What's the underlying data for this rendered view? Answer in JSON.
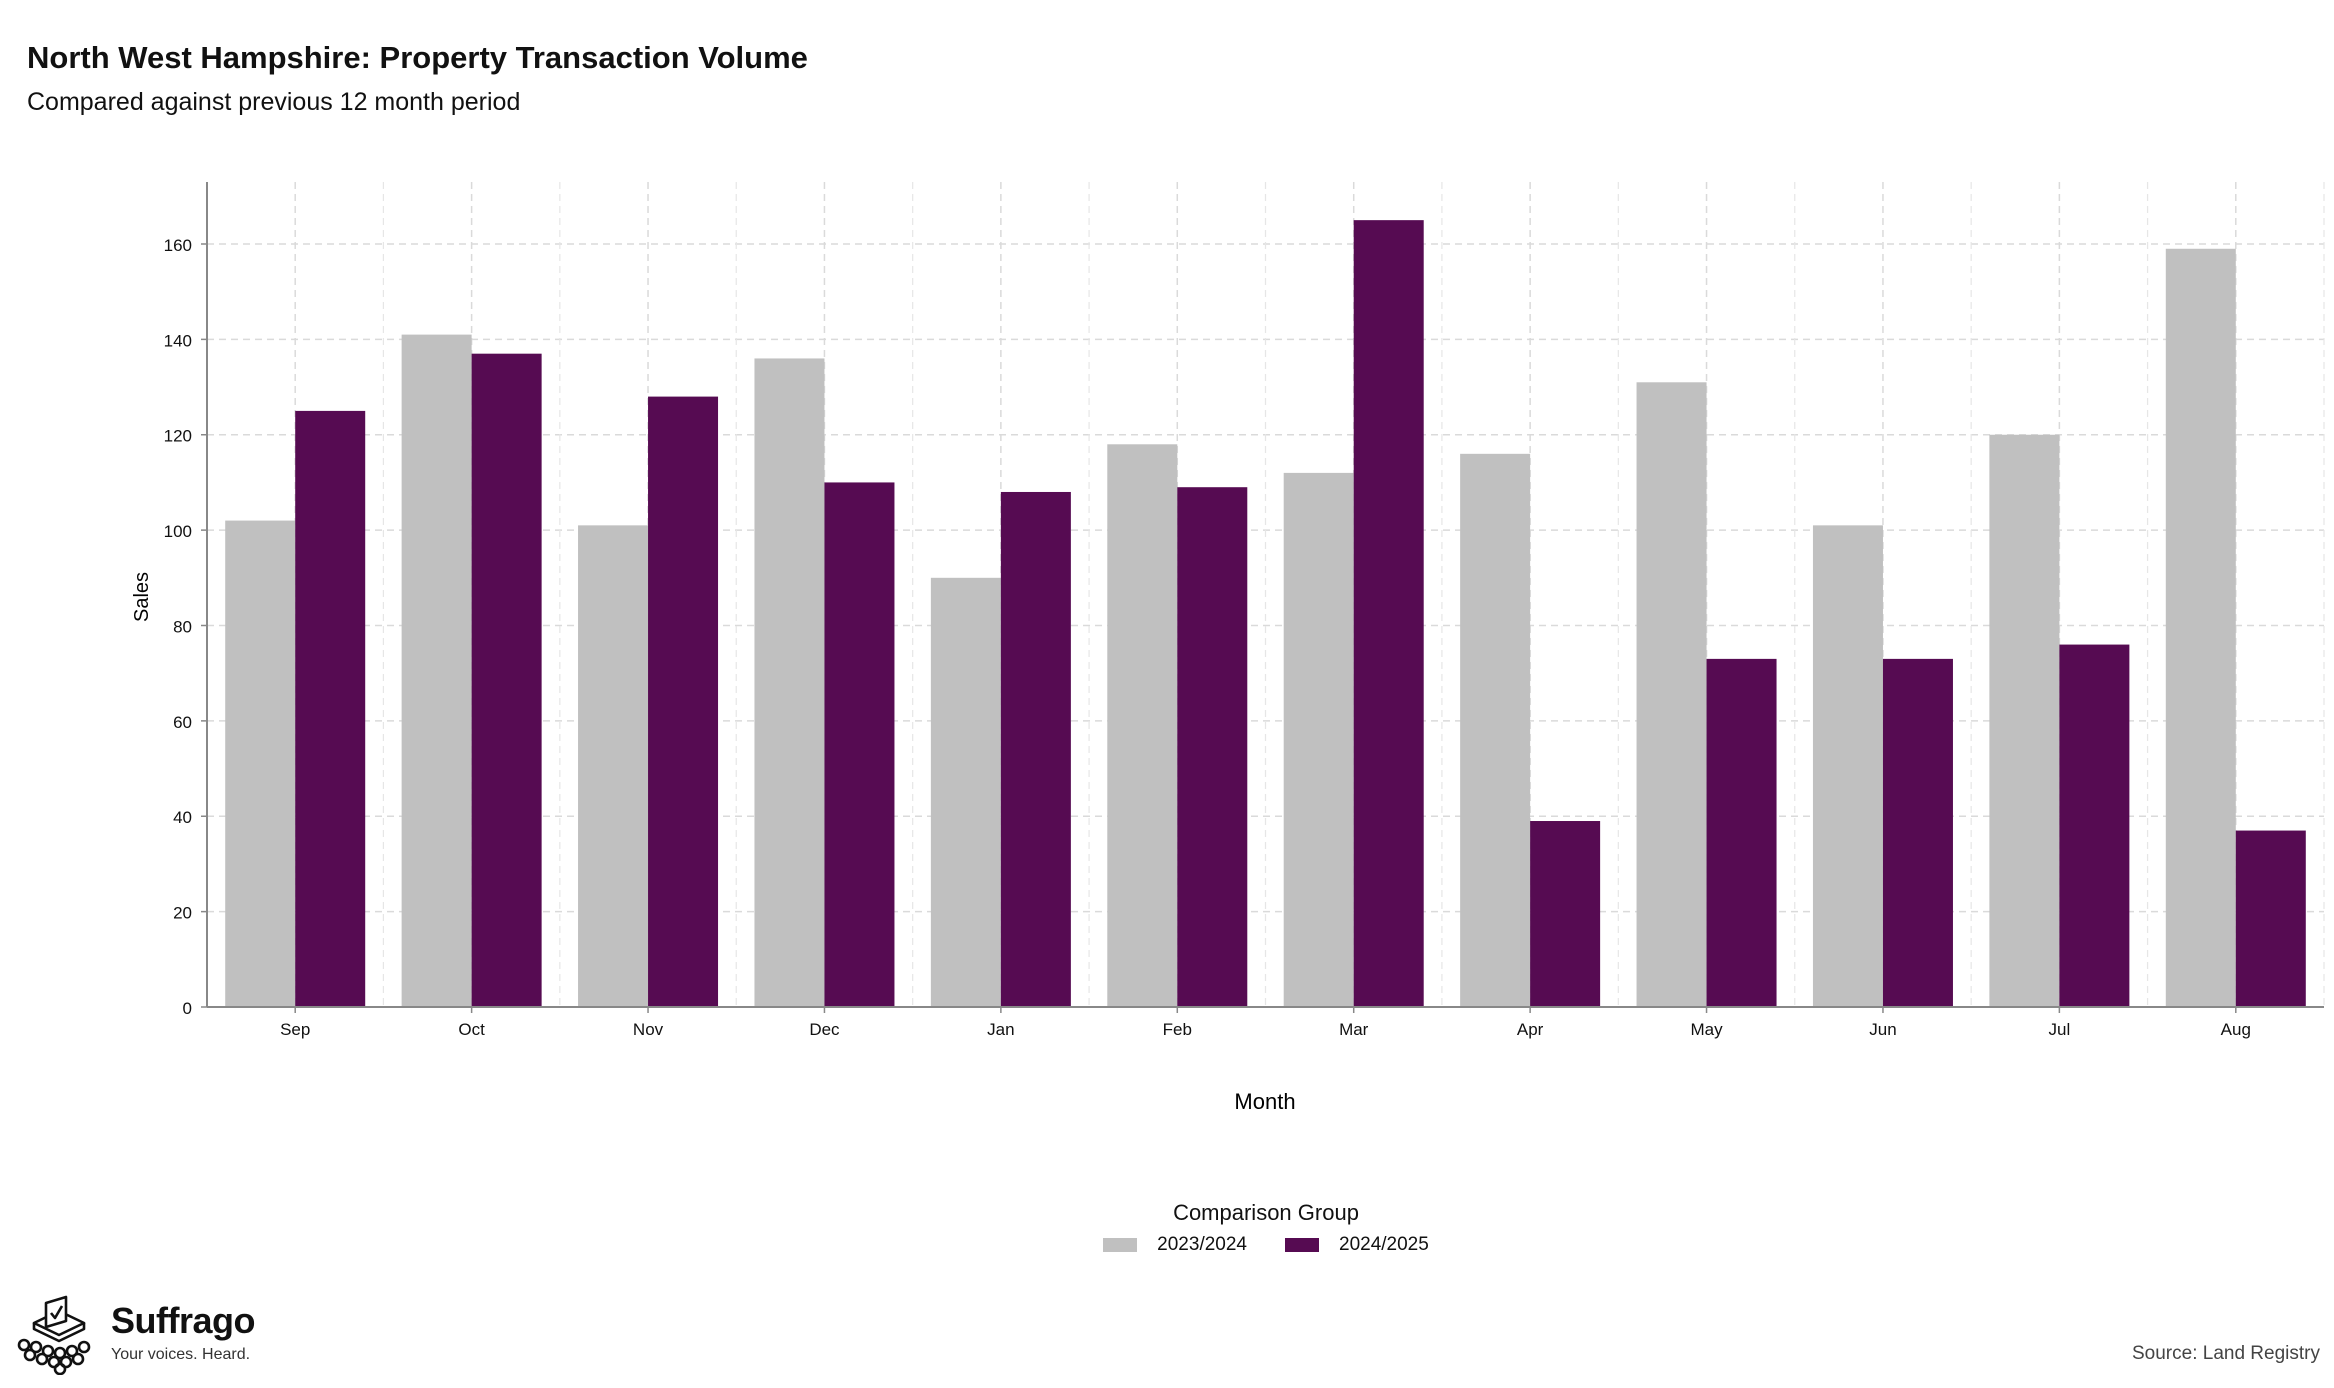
{
  "header": {
    "title": "North West Hampshire: Property Transaction Volume",
    "subtitle": "Compared against previous 12 month period"
  },
  "chart_data": {
    "type": "bar",
    "categories": [
      "Sep",
      "Oct",
      "Nov",
      "Dec",
      "Jan",
      "Feb",
      "Mar",
      "Apr",
      "May",
      "Jun",
      "Jul",
      "Aug"
    ],
    "series": [
      {
        "name": "2023/2024",
        "color": "#c0c0c0",
        "values": [
          102,
          141,
          101,
          136,
          90,
          118,
          112,
          116,
          131,
          101,
          120,
          159
        ]
      },
      {
        "name": "2024/2025",
        "color": "#560b52",
        "values": [
          125,
          137,
          128,
          110,
          108,
          109,
          165,
          39,
          73,
          73,
          76,
          37
        ]
      }
    ],
    "xlabel": "Month",
    "ylabel": "Sales",
    "ylim": [
      0,
      173
    ],
    "yticks": [
      0,
      20,
      40,
      60,
      80,
      100,
      120,
      140,
      160
    ],
    "grid": true,
    "legend_title": "Comparison Group",
    "legend_position": "bottom"
  },
  "branding": {
    "name": "Suffrago",
    "tagline": "Your voices. Heard.",
    "logo_icon": "ballot-box-icon"
  },
  "footer": {
    "source": "Source: Land Registry"
  }
}
